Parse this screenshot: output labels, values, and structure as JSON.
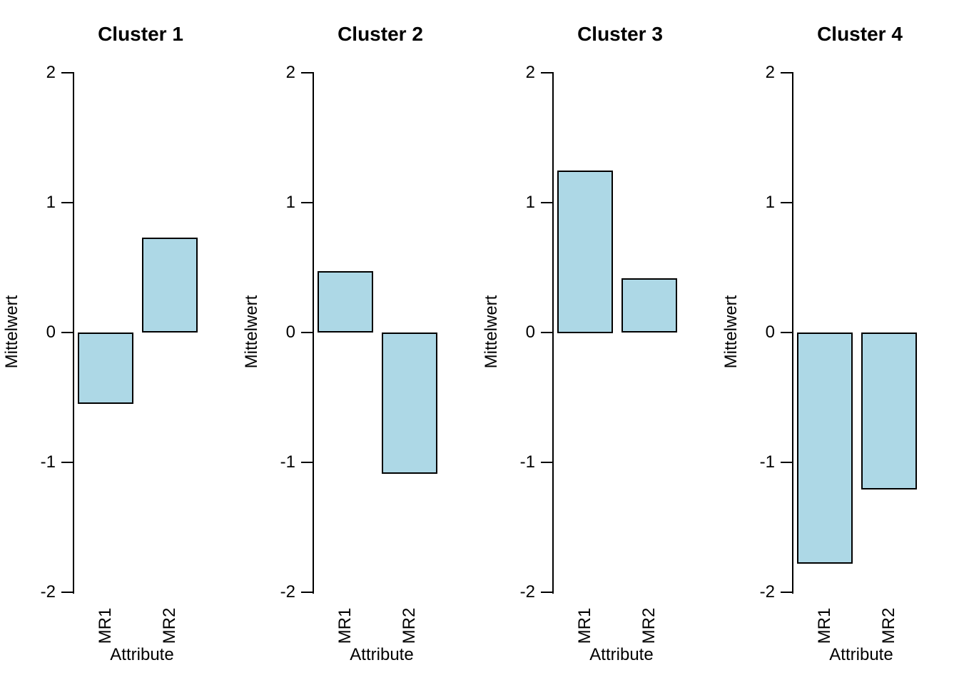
{
  "figure": {
    "background": "#ffffff",
    "text_color": "#000000"
  },
  "chart_data": [
    {
      "type": "bar",
      "title": "Cluster 1",
      "categories": [
        "MR1",
        "MR2"
      ],
      "values": [
        -0.55,
        0.73
      ],
      "xlabel": "Attribute",
      "ylabel": "Mittelwert",
      "ylim": [
        -2,
        2
      ],
      "yticks": [
        2,
        1,
        0,
        -1,
        -2
      ],
      "grid": false,
      "bar_fill": "#ADD8E6",
      "bar_border": "#000000"
    },
    {
      "type": "bar",
      "title": "Cluster 2",
      "categories": [
        "MR1",
        "MR2"
      ],
      "values": [
        0.47,
        -1.09
      ],
      "xlabel": "Attribute",
      "ylabel": "Mittelwert",
      "ylim": [
        -2,
        2
      ],
      "yticks": [
        2,
        1,
        0,
        -1,
        -2
      ],
      "grid": false,
      "bar_fill": "#ADD8E6",
      "bar_border": "#000000"
    },
    {
      "type": "bar",
      "title": "Cluster 3",
      "categories": [
        "MR1",
        "MR2"
      ],
      "values": [
        1.25,
        0.42
      ],
      "xlabel": "Attribute",
      "ylabel": "Mittelwert",
      "ylim": [
        -2,
        2
      ],
      "yticks": [
        2,
        1,
        0,
        -1,
        -2
      ],
      "grid": false,
      "bar_fill": "#ADD8E6",
      "bar_border": "#000000"
    },
    {
      "type": "bar",
      "title": "Cluster 4",
      "categories": [
        "MR1",
        "MR2"
      ],
      "values": [
        -1.78,
        -1.21
      ],
      "xlabel": "Attribute",
      "ylabel": "Mittelwert",
      "ylim": [
        -2,
        2
      ],
      "yticks": [
        2,
        1,
        0,
        -1,
        -2
      ],
      "grid": false,
      "bar_fill": "#ADD8E6",
      "bar_border": "#000000"
    }
  ]
}
